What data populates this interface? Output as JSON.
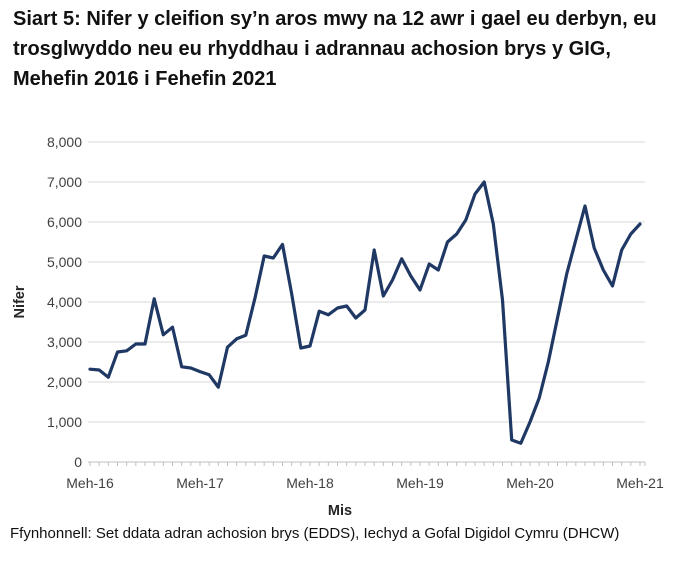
{
  "chart_data": {
    "type": "line",
    "title": "Siart 5: Nifer y cleifion sy’n aros mwy na 12 awr i gael eu derbyn, eu trosglwyddo neu eu rhyddhau i adrannau achosion brys y GIG, Mehefin 2016 i Fehefin 2021",
    "xlabel": "Mis",
    "ylabel": "Nifer",
    "ylim": [
      0,
      8000
    ],
    "grid": "horizontal",
    "legend": "none",
    "line_color": "#1f3864",
    "grid_color": "#d9d9d9",
    "axis_color": "#bfbfbf",
    "tick_text_color": "#404040",
    "axis_title_color": "#262626",
    "y_tick_labels": [
      "0",
      "1,000",
      "2,000",
      "3,000",
      "4,000",
      "5,000",
      "6,000",
      "7,000",
      "8,000"
    ],
    "x_tick_labels": [
      "Meh-16",
      "Meh-17",
      "Meh-18",
      "Meh-19",
      "Meh-20",
      "Meh-21"
    ],
    "x": [
      "2016-06",
      "2016-07",
      "2016-08",
      "2016-09",
      "2016-10",
      "2016-11",
      "2016-12",
      "2017-01",
      "2017-02",
      "2017-03",
      "2017-04",
      "2017-05",
      "2017-06",
      "2017-07",
      "2017-08",
      "2017-09",
      "2017-10",
      "2017-11",
      "2017-12",
      "2018-01",
      "2018-02",
      "2018-03",
      "2018-04",
      "2018-05",
      "2018-06",
      "2018-07",
      "2018-08",
      "2018-09",
      "2018-10",
      "2018-11",
      "2018-12",
      "2019-01",
      "2019-02",
      "2019-03",
      "2019-04",
      "2019-05",
      "2019-06",
      "2019-07",
      "2019-08",
      "2019-09",
      "2019-10",
      "2019-11",
      "2019-12",
      "2020-01",
      "2020-02",
      "2020-03",
      "2020-04",
      "2020-05",
      "2020-06",
      "2020-07",
      "2020-08",
      "2020-09",
      "2020-10",
      "2020-11",
      "2020-12",
      "2021-01",
      "2021-02",
      "2021-03",
      "2021-04",
      "2021-05",
      "2021-06"
    ],
    "values": [
      2320,
      2300,
      2120,
      2750,
      2780,
      2950,
      2950,
      4080,
      3180,
      3370,
      2380,
      2350,
      2260,
      2180,
      1870,
      2870,
      3080,
      3170,
      4100,
      5150,
      5100,
      5440,
      4200,
      2850,
      2900,
      3770,
      3680,
      3850,
      3900,
      3600,
      3800,
      5300,
      4150,
      4550,
      5080,
      4650,
      4300,
      4950,
      4800,
      5500,
      5700,
      6050,
      6700,
      7000,
      5950,
      4050,
      550,
      470,
      1000,
      1600,
      2500,
      3600,
      4700,
      5550,
      6400,
      5350,
      4800,
      4400,
      5300,
      5700,
      5950
    ]
  },
  "source_note": "Ffynhonnell: Set ddata adran achosion brys (EDDS), Iechyd a Gofal Digidol Cymru (DHCW)"
}
